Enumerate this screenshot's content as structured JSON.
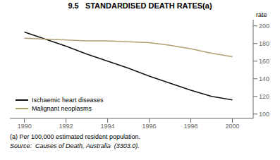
{
  "chart_data": {
    "type": "line",
    "title": "9.5   STANDARDISED DEATH RATES(a)",
    "x": [
      1990,
      1991,
      1992,
      1993,
      1994,
      1995,
      1996,
      1997,
      1998,
      1999,
      2000
    ],
    "series": [
      {
        "name": "Ischaemic heart diseases",
        "color": "#111111",
        "values": [
          193,
          185,
          177,
          168,
          160,
          152,
          143,
          135,
          127,
          120,
          116
        ]
      },
      {
        "name": "Malignant neoplasms",
        "color": "#b0a070",
        "values": [
          186,
          185,
          184,
          183,
          183,
          182,
          181,
          178,
          174,
          169,
          165
        ]
      }
    ],
    "xlim": [
      1989.3,
      2001.0
    ],
    "xticks": [
      1990,
      1992,
      1994,
      1996,
      1998,
      2000
    ],
    "ylim": [
      95,
      207
    ],
    "yticks": [
      100,
      120,
      140,
      160,
      180,
      200
    ],
    "ylabel": "rate",
    "annotations": [
      "(a) Per 100,000 estimated resident population.",
      "Source:  Causes of Death, Australia  (3303.0)."
    ],
    "legend": "lower left",
    "grid": false
  }
}
